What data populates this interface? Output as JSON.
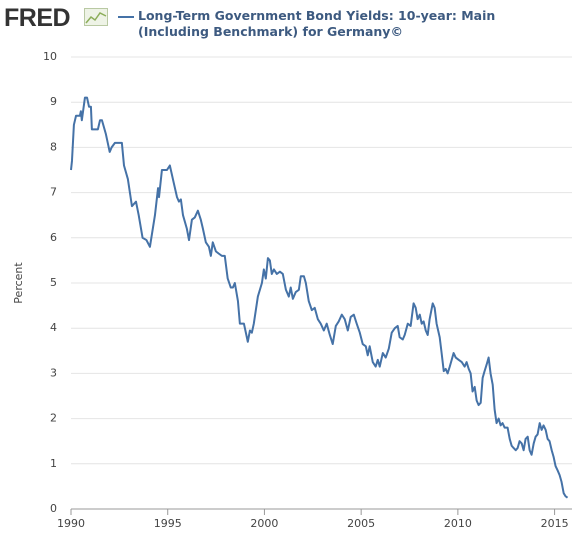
{
  "chart_data": {
    "type": "line",
    "logo": "FRED",
    "ylabel": "Percent",
    "x": [
      1990.0,
      1990.05,
      1990.15,
      1990.26,
      1990.46,
      1990.51,
      1990.56,
      1990.72,
      1990.83,
      1990.93,
      1991.03,
      1991.08,
      1991.39,
      1991.5,
      1991.6,
      1991.8,
      1992.0,
      1992.1,
      1992.27,
      1992.63,
      1992.74,
      1992.94,
      1993.15,
      1993.36,
      1993.5,
      1993.7,
      1993.9,
      1994.08,
      1994.34,
      1994.5,
      1994.55,
      1994.7,
      1994.96,
      1995.11,
      1995.32,
      1995.48,
      1995.58,
      1995.68,
      1995.79,
      1995.99,
      1996.1,
      1996.25,
      1996.4,
      1996.56,
      1996.71,
      1996.82,
      1996.97,
      1997.13,
      1997.23,
      1997.33,
      1997.49,
      1997.64,
      1997.8,
      1997.95,
      1998.1,
      1998.26,
      1998.37,
      1998.47,
      1998.63,
      1998.73,
      1998.94,
      1999.14,
      1999.25,
      1999.35,
      1999.45,
      1999.66,
      1999.87,
      1999.97,
      2000.07,
      2000.18,
      2000.28,
      2000.38,
      2000.49,
      2000.64,
      2000.8,
      2000.95,
      2001.11,
      2001.26,
      2001.36,
      2001.47,
      2001.62,
      2001.78,
      2001.88,
      2002.04,
      2002.14,
      2002.29,
      2002.45,
      2002.6,
      2002.76,
      2002.91,
      2003.07,
      2003.22,
      2003.38,
      2003.53,
      2003.69,
      2003.84,
      2004.0,
      2004.15,
      2004.31,
      2004.46,
      2004.62,
      2004.77,
      2004.93,
      2005.08,
      2005.24,
      2005.34,
      2005.44,
      2005.6,
      2005.75,
      2005.86,
      2005.96,
      2006.12,
      2006.27,
      2006.43,
      2006.58,
      2006.74,
      2006.89,
      2006.99,
      2007.15,
      2007.25,
      2007.41,
      2007.56,
      2007.71,
      2007.82,
      2007.92,
      2008.03,
      2008.13,
      2008.23,
      2008.34,
      2008.44,
      2008.54,
      2008.7,
      2008.8,
      2008.9,
      2009.06,
      2009.16,
      2009.27,
      2009.37,
      2009.47,
      2009.58,
      2009.68,
      2009.78,
      2009.89,
      2010.04,
      2010.2,
      2010.35,
      2010.45,
      2010.56,
      2010.66,
      2010.76,
      2010.87,
      2010.97,
      2011.07,
      2011.18,
      2011.28,
      2011.38,
      2011.49,
      2011.59,
      2011.69,
      2011.8,
      2011.9,
      2012.0,
      2012.11,
      2012.21,
      2012.31,
      2012.42,
      2012.57,
      2012.68,
      2012.78,
      2012.88,
      2012.99,
      2013.09,
      2013.19,
      2013.3,
      2013.4,
      2013.5,
      2013.61,
      2013.71,
      2013.81,
      2013.92,
      2014.02,
      2014.12,
      2014.23,
      2014.33,
      2014.43,
      2014.54,
      2014.64,
      2014.74,
      2014.85,
      2014.95,
      2015.05,
      2015.16,
      2015.26,
      2015.36,
      2015.47,
      2015.57,
      2015.67
    ],
    "series": [
      {
        "name": "Long-Term Government Bond Yields: 10-year: Main (Including Benchmark) for Germany©",
        "color": "#4572a7",
        "values": [
          7.5,
          7.7,
          8.5,
          8.7,
          8.7,
          8.8,
          8.6,
          9.1,
          9.1,
          8.9,
          8.9,
          8.4,
          8.4,
          8.6,
          8.6,
          8.3,
          7.9,
          8.0,
          8.1,
          8.1,
          7.6,
          7.3,
          6.7,
          6.8,
          6.5,
          6.0,
          5.95,
          5.8,
          6.5,
          7.1,
          6.9,
          7.5,
          7.5,
          7.6,
          7.2,
          6.9,
          6.8,
          6.85,
          6.5,
          6.2,
          5.95,
          6.4,
          6.45,
          6.6,
          6.4,
          6.2,
          5.9,
          5.8,
          5.6,
          5.9,
          5.7,
          5.65,
          5.6,
          5.6,
          5.1,
          4.9,
          4.9,
          5.0,
          4.6,
          4.1,
          4.1,
          3.7,
          3.95,
          3.9,
          4.1,
          4.7,
          5.0,
          5.3,
          5.1,
          5.55,
          5.5,
          5.2,
          5.3,
          5.2,
          5.25,
          5.2,
          4.85,
          4.7,
          4.9,
          4.65,
          4.8,
          4.85,
          5.15,
          5.15,
          5.0,
          4.6,
          4.4,
          4.45,
          4.2,
          4.1,
          3.95,
          4.1,
          3.85,
          3.65,
          4.05,
          4.15,
          4.3,
          4.2,
          3.95,
          4.25,
          4.3,
          4.1,
          3.9,
          3.65,
          3.6,
          3.4,
          3.6,
          3.25,
          3.15,
          3.3,
          3.15,
          3.45,
          3.35,
          3.55,
          3.9,
          4.0,
          4.05,
          3.8,
          3.75,
          3.85,
          4.1,
          4.05,
          4.55,
          4.45,
          4.2,
          4.3,
          4.1,
          4.15,
          3.95,
          3.85,
          4.2,
          4.55,
          4.45,
          4.1,
          3.8,
          3.45,
          3.05,
          3.1,
          3.0,
          3.15,
          3.3,
          3.45,
          3.35,
          3.3,
          3.25,
          3.15,
          3.25,
          3.1,
          3.0,
          2.6,
          2.7,
          2.4,
          2.3,
          2.35,
          2.9,
          3.05,
          3.2,
          3.35,
          3.0,
          2.75,
          2.2,
          1.9,
          2.0,
          1.85,
          1.9,
          1.8,
          1.8,
          1.55,
          1.4,
          1.35,
          1.3,
          1.35,
          1.5,
          1.45,
          1.3,
          1.55,
          1.6,
          1.3,
          1.2,
          1.45,
          1.6,
          1.65,
          1.9,
          1.75,
          1.85,
          1.75,
          1.55,
          1.5,
          1.3,
          1.15,
          0.95,
          0.85,
          0.75,
          0.6,
          0.35,
          0.28,
          0.25
        ]
      }
    ],
    "xlim": [
      1990,
      2015.9
    ],
    "xticks": [
      1990,
      1995,
      2000,
      2005,
      2010,
      2015
    ],
    "ylim": [
      0,
      10
    ],
    "yticks": [
      0,
      1,
      2,
      3,
      4,
      5,
      6,
      7,
      8,
      9,
      10
    ],
    "grid": "y"
  }
}
